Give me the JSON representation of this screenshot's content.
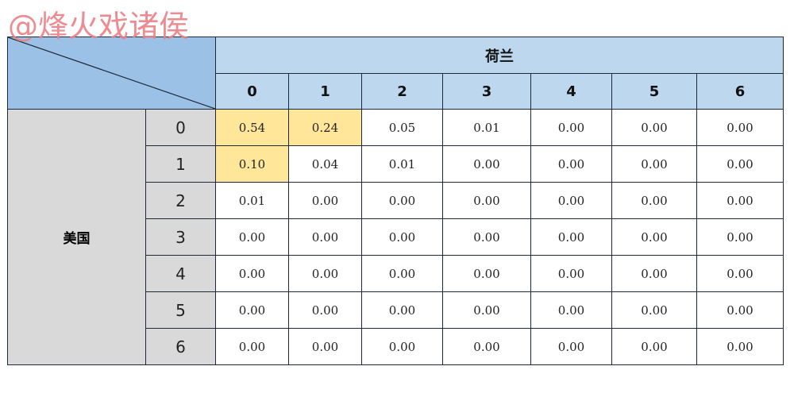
{
  "watermark": "@烽火戏诸侯",
  "col_group": "荷兰",
  "row_group": "美国",
  "col_labels": [
    "0",
    "1",
    "2",
    "3",
    "4",
    "5",
    "6"
  ],
  "row_labels": [
    "0",
    "1",
    "2",
    "3",
    "4",
    "5",
    "6"
  ],
  "values": [
    [
      "0.54",
      "0.24",
      "0.05",
      "0.01",
      "0.00",
      "0.00",
      "0.00"
    ],
    [
      "0.10",
      "0.04",
      "0.01",
      "0.00",
      "0.00",
      "0.00",
      "0.00"
    ],
    [
      "0.01",
      "0.00",
      "0.00",
      "0.00",
      "0.00",
      "0.00",
      "0.00"
    ],
    [
      "0.00",
      "0.00",
      "0.00",
      "0.00",
      "0.00",
      "0.00",
      "0.00"
    ],
    [
      "0.00",
      "0.00",
      "0.00",
      "0.00",
      "0.00",
      "0.00",
      "0.00"
    ],
    [
      "0.00",
      "0.00",
      "0.00",
      "0.00",
      "0.00",
      "0.00",
      "0.00"
    ],
    [
      "0.00",
      "0.00",
      "0.00",
      "0.00",
      "0.00",
      "0.00",
      "0.00"
    ]
  ],
  "highlighted": [
    [
      0,
      0
    ],
    [
      0,
      1
    ],
    [
      1,
      0
    ]
  ],
  "colors": {
    "header": "#bdd7ee",
    "corner": "#9bc2e6",
    "row_header": "#d9d9d9",
    "highlight": "#ffe699",
    "watermark": "#ec7f86"
  }
}
